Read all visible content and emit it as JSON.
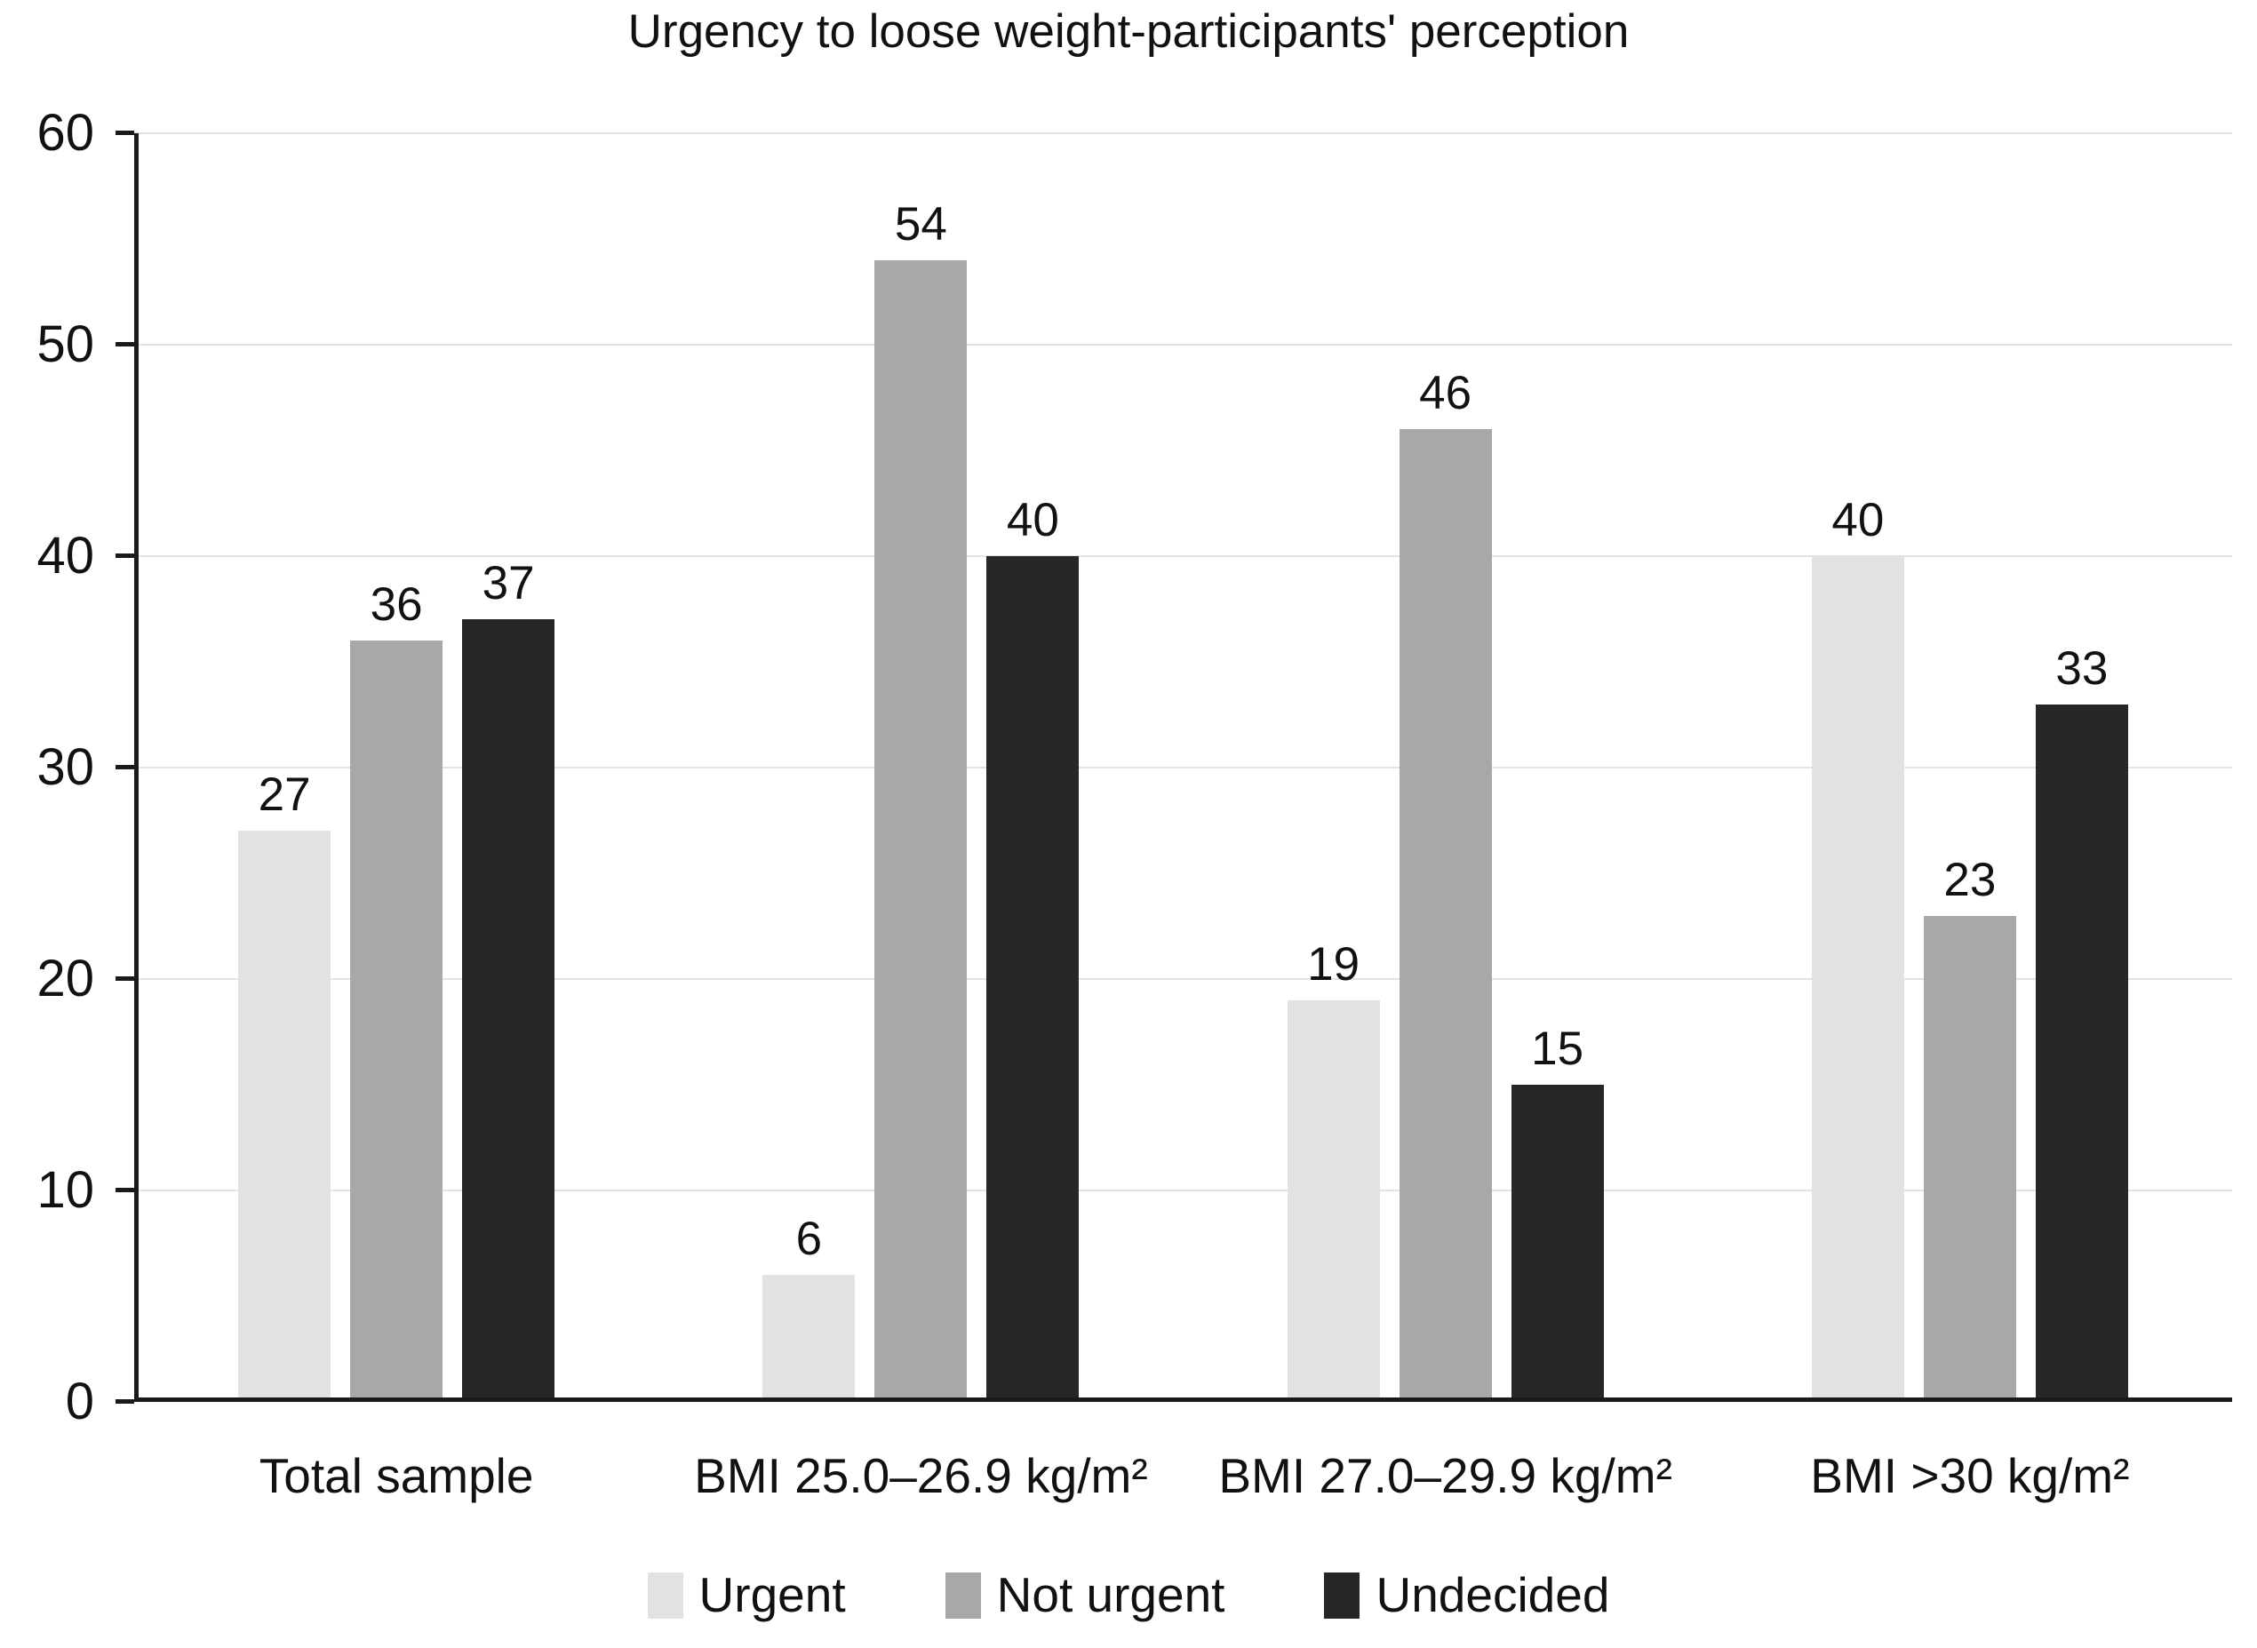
{
  "title": "Urgency to loose weight-participants' perception",
  "colors": {
    "urgent": "#e4e2e0",
    "not_urgent": "#a8a8a8",
    "undecided": "#272727",
    "gridline": "#e3e3e3",
    "axis": "#1a1a1a",
    "text": "#111111",
    "background": "#ffffff"
  },
  "chart_data": {
    "type": "bar",
    "title": "Urgency to loose weight-participants' perception",
    "categories": [
      "Total sample",
      "BMI 25.0–26.9 kg/m²",
      "BMI 27.0–29.9 kg/m²",
      "BMI >30 kg/m²"
    ],
    "series": [
      {
        "name": "Urgent",
        "color_key": "urgent",
        "values": [
          27,
          6,
          19,
          40
        ]
      },
      {
        "name": "Not urgent",
        "color_key": "not_urgent",
        "values": [
          36,
          54,
          46,
          23
        ]
      },
      {
        "name": "Undecided",
        "color_key": "undecided",
        "values": [
          37,
          40,
          15,
          33
        ]
      }
    ],
    "xlabel": "",
    "ylabel": "",
    "ylim": [
      0,
      60
    ],
    "yticks": [
      0,
      10,
      20,
      30,
      40,
      50,
      60
    ],
    "grid": "horizontal",
    "legend_position": "bottom",
    "bar_value_labels": true
  }
}
